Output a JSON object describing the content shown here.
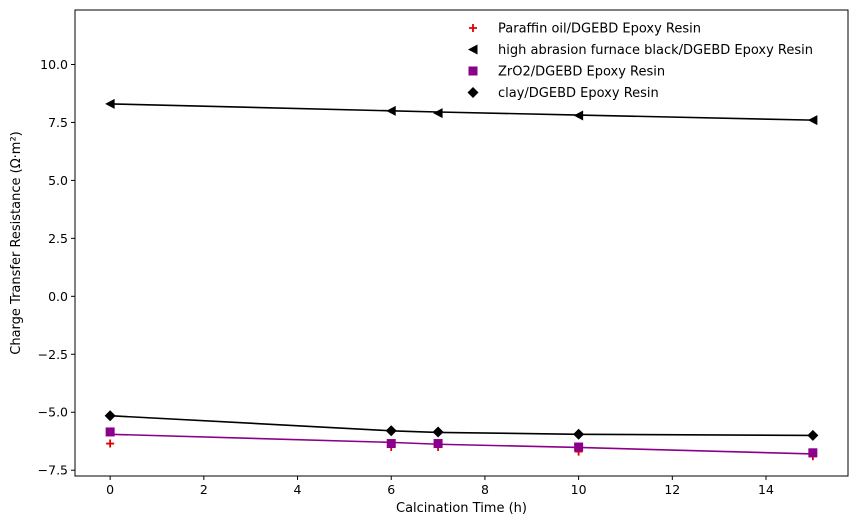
{
  "chart_data": {
    "type": "scatter",
    "xlabel": "Calcination Time (h)",
    "ylabel": "Charge Transfer Resistance (Ω·m²)",
    "xlim": [
      -0.75,
      15.75
    ],
    "ylim": [
      -7.75,
      12.35
    ],
    "xticks": [
      0,
      2,
      4,
      6,
      8,
      10,
      12,
      14
    ],
    "yticks": [
      -7.5,
      -5.0,
      -2.5,
      0.0,
      2.5,
      5.0,
      7.5,
      10.0
    ],
    "xtick_labels": [
      "0",
      "2",
      "4",
      "6",
      "8",
      "10",
      "12",
      "14"
    ],
    "ytick_labels": [
      "−7.5",
      "−5.0",
      "−2.5",
      "0.0",
      "2.5",
      "5.0",
      "7.5",
      "10.0"
    ],
    "grid": false,
    "legend_position": "top-right",
    "series": [
      {
        "name": "Paraffin oil/DGEBD Epoxy Resin",
        "marker": "plus",
        "color": "#e00000",
        "x": [
          0,
          6,
          7,
          10,
          15
        ],
        "y": [
          -6.35,
          -6.5,
          -6.5,
          -6.7,
          -6.9
        ],
        "fit_line": null
      },
      {
        "name": "high abrasion furnace black/DGEBD Epoxy Resin",
        "marker": "triangle-left",
        "color": "#000000",
        "x": [
          0,
          6,
          7,
          10,
          15
        ],
        "y": [
          8.3,
          8.0,
          7.9,
          7.8,
          7.6
        ],
        "fit_line": {
          "x": [
            0,
            6,
            7,
            10,
            15
          ],
          "y": [
            8.3,
            8.0,
            7.95,
            7.82,
            7.6
          ],
          "color": "#000000"
        }
      },
      {
        "name": "ZrO2/DGEBD Epoxy Resin",
        "marker": "square",
        "color": "#8b008b",
        "x": [
          0,
          6,
          7,
          10,
          15
        ],
        "y": [
          -5.85,
          -6.35,
          -6.35,
          -6.5,
          -6.75
        ],
        "fit_line": {
          "x": [
            0,
            6,
            7,
            10,
            15
          ],
          "y": [
            -5.95,
            -6.3,
            -6.38,
            -6.52,
            -6.8
          ],
          "color": "#8b008b"
        }
      },
      {
        "name": "clay/DGEBD Epoxy Resin",
        "marker": "diamond",
        "color": "#000000",
        "x": [
          0,
          6,
          7,
          10,
          15
        ],
        "y": [
          -5.15,
          -5.8,
          -5.85,
          -5.95,
          -6.0
        ],
        "fit_line": {
          "x": [
            0,
            6,
            7,
            10,
            15
          ],
          "y": [
            -5.15,
            -5.8,
            -5.87,
            -5.95,
            -6.0
          ],
          "color": "#000000"
        }
      }
    ]
  }
}
